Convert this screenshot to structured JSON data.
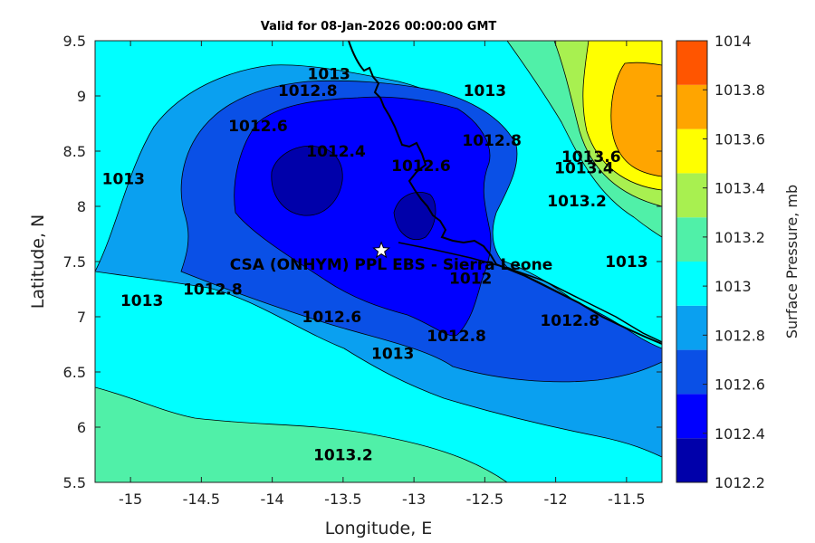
{
  "title": "Valid for 08-Jan-2026 00:00:00 GMT",
  "axes": {
    "xlabel": "Longitude, E",
    "ylabel": "Latitude, N",
    "xlim": [
      -15.25,
      -11.25
    ],
    "ylim": [
      5.5,
      9.5
    ],
    "xticks": [
      "-15",
      "-14.5",
      "-14",
      "-13.5",
      "-13",
      "-12.5",
      "-12",
      "-11.5"
    ],
    "yticks": [
      "5.5",
      "6",
      "6.5",
      "7",
      "7.5",
      "8",
      "8.5",
      "9",
      "9.5"
    ]
  },
  "colorbar": {
    "label": "Surface Pressure, mb",
    "ticks": [
      "1014",
      "1013.8",
      "1013.6",
      "1013.4",
      "1013.2",
      "1013",
      "1012.8",
      "1012.6",
      "1012.4",
      "1012.2"
    ],
    "colors": [
      "#0000aa",
      "#0000ff",
      "#0a50e6",
      "#0aa0f0",
      "#00ffff",
      "#50f0a8",
      "#a8f050",
      "#ffff00",
      "#ffa500",
      "#ff5500"
    ]
  },
  "site": {
    "label": "CSA (ONHYM) PPL EBS  - Sierra Leone",
    "lon": -13.23,
    "lat": 7.6,
    "marker": "star"
  },
  "contour_labels": [
    {
      "text": "1013",
      "lon": -13.6,
      "lat": 9.15
    },
    {
      "text": "1012.8",
      "lon": -13.75,
      "lat": 9.0
    },
    {
      "text": "1012.6",
      "lon": -14.1,
      "lat": 8.68
    },
    {
      "text": "1012.4",
      "lon": -13.55,
      "lat": 8.45
    },
    {
      "text": "1012.6",
      "lon": -12.95,
      "lat": 8.32
    },
    {
      "text": "1013",
      "lon": -12.5,
      "lat": 9.0
    },
    {
      "text": "1012.8",
      "lon": -12.45,
      "lat": 8.55
    },
    {
      "text": "1013",
      "lon": -15.05,
      "lat": 8.2
    },
    {
      "text": "1013.6",
      "lon": -11.75,
      "lat": 8.4
    },
    {
      "text": "1013.4",
      "lon": -11.8,
      "lat": 8.3
    },
    {
      "text": "1013.2",
      "lon": -11.85,
      "lat": 8.0
    },
    {
      "text": "1013",
      "lon": -11.5,
      "lat": 7.45
    },
    {
      "text": "1013",
      "lon": -14.92,
      "lat": 7.1
    },
    {
      "text": "1012.8",
      "lon": -14.42,
      "lat": 7.2
    },
    {
      "text": "1012.6",
      "lon": -13.58,
      "lat": 6.95
    },
    {
      "text": "1012.8",
      "lon": -12.7,
      "lat": 6.78
    },
    {
      "text": "1012",
      "lon": -12.6,
      "lat": 7.3
    },
    {
      "text": "1012.8",
      "lon": -11.9,
      "lat": 6.92
    },
    {
      "text": "1013",
      "lon": -13.15,
      "lat": 6.62
    },
    {
      "text": "1013.2",
      "lon": -13.5,
      "lat": 5.7
    }
  ]
}
